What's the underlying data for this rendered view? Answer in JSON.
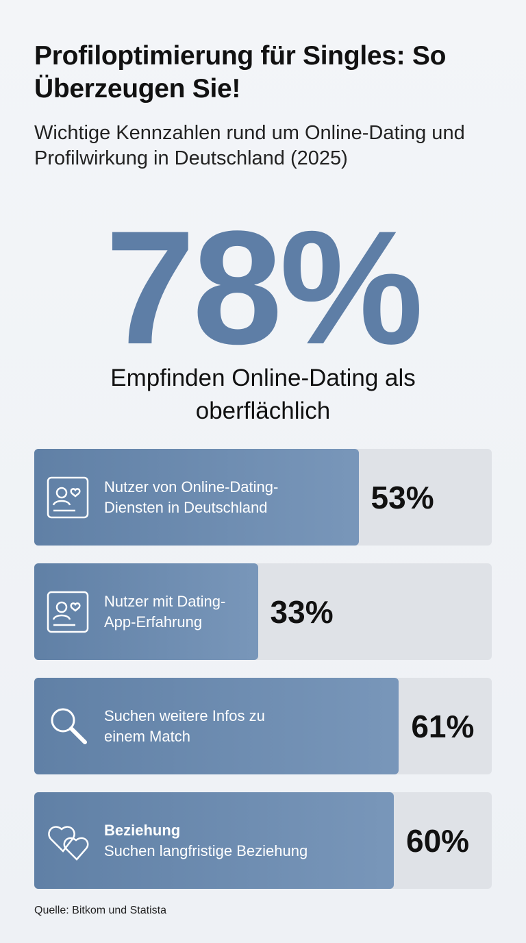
{
  "title": "Profiloptimierung für Singles: So Überzeugen Sie!",
  "subtitle": "Wichtige Kennzahlen rund um Online-Dating und Profilwirkung in Deutschland (2025)",
  "hero": {
    "value": 78,
    "value_label": "78%",
    "caption": "Empfinden Online-Dating als oberflächlich"
  },
  "chart_data": {
    "type": "bar",
    "bar_color": "#6688b0",
    "track_color": "#dfe2e7",
    "bars": [
      {
        "lines": [
          "Nutzer von Online-Dating-",
          "Diensten in Deutschland"
        ],
        "value": 53,
        "value_label": "53%"
      },
      {
        "lines": [
          "Nutzer mit Dating-",
          "App-Erfahrung"
        ],
        "value": 33,
        "value_label": "33%"
      },
      {
        "lines": [
          "Suchen weitere Infos zu",
          "einem Match"
        ],
        "value": 61,
        "value_label": "61%"
      },
      {
        "heading": "Beziehung",
        "lines": [
          "Suchen langfristige Beziehung"
        ],
        "value": 60,
        "value_label": "60%"
      }
    ]
  },
  "source": "Quelle: Bitkom und Statista"
}
